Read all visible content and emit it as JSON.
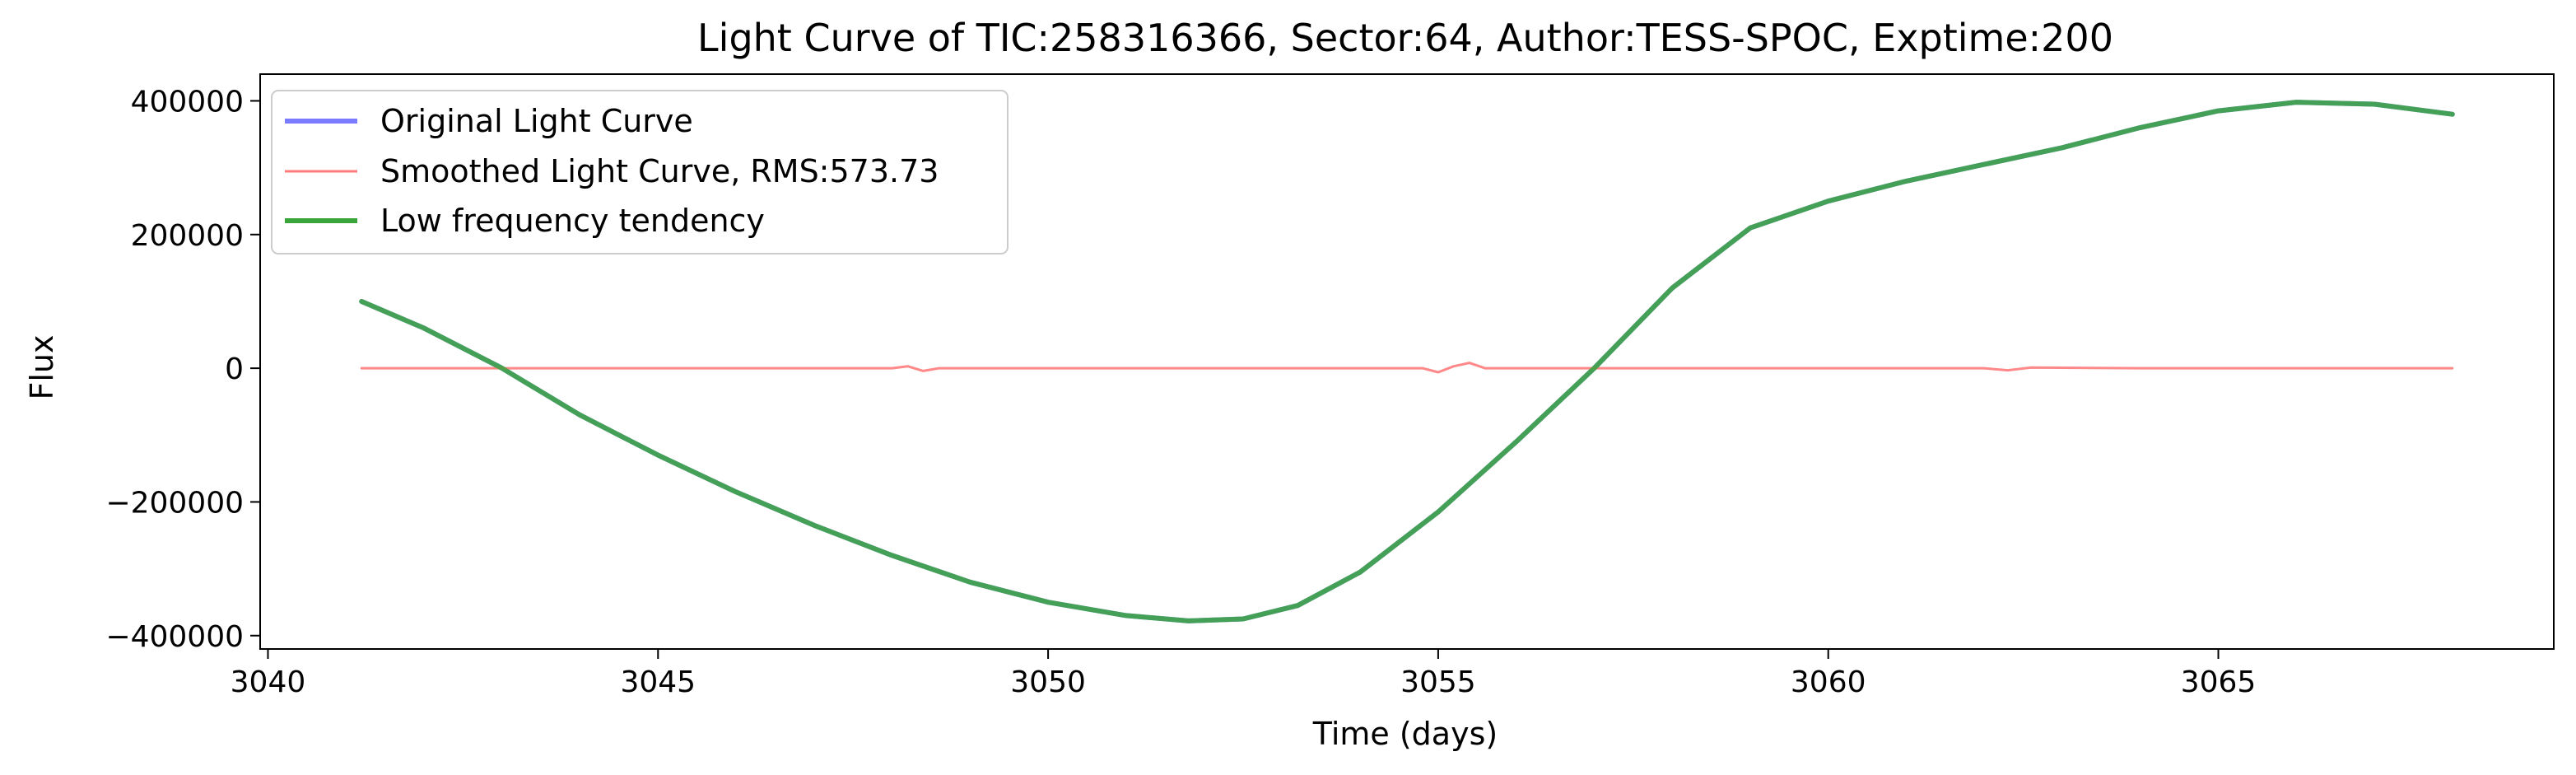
{
  "chart_data": {
    "type": "line",
    "title": "Light Curve of TIC:258316366, Sector:64, Author:TESS-SPOC, Exptime:200",
    "xlabel": "Time (days)",
    "ylabel": "Flux",
    "xlim": [
      3039.9,
      3069.3
    ],
    "ylim": [
      -420000,
      440000
    ],
    "x_ticks": [
      3040,
      3045,
      3050,
      3055,
      3060,
      3065
    ],
    "y_ticks": [
      400000,
      200000,
      0,
      -200000,
      -400000
    ],
    "x_tick_labels": [
      "3040",
      "3045",
      "3050",
      "3055",
      "3060",
      "3065"
    ],
    "y_tick_labels": [
      "400000",
      "200000",
      "0",
      "−200000",
      "−400000"
    ],
    "grid": false,
    "legend_position": "upper-left",
    "colors": {
      "original": "#7b7bff",
      "smoothed": "#ff7b7b",
      "low_frequency": "#3aa53a",
      "overlap": "#2a6e4e"
    },
    "series": [
      {
        "name": "Original Light Curve",
        "color": "#7b7bff",
        "x": [
          3041.2,
          3042.0,
          3043.0,
          3044.0,
          3045.0,
          3046.0,
          3047.0,
          3048.0,
          3049.0,
          3050.0,
          3051.0,
          3051.8,
          3052.5,
          3053.2,
          3054.0,
          3055.0,
          3056.0,
          3057.0,
          3058.0,
          3059.0,
          3060.0,
          3061.0,
          3062.0,
          3063.0,
          3064.0,
          3065.0,
          3066.0,
          3067.0,
          3068.0
        ],
        "values": [
          100000,
          60000,
          0,
          -70000,
          -130000,
          -185000,
          -235000,
          -280000,
          -320000,
          -350000,
          -370000,
          -378000,
          -375000,
          -355000,
          -305000,
          -215000,
          -110000,
          0,
          120000,
          210000,
          250000,
          280000,
          305000,
          330000,
          360000,
          385000,
          398000,
          395000,
          380000
        ]
      },
      {
        "name": "Smoothed Light Curve, RMS:573.73",
        "color": "#ff7b7b",
        "x": [
          3041.2,
          3043.0,
          3045.0,
          3047.0,
          3048.0,
          3048.2,
          3048.4,
          3048.6,
          3050.0,
          3052.0,
          3054.0,
          3054.8,
          3055.0,
          3055.2,
          3055.4,
          3055.6,
          3057.0,
          3059.0,
          3061.0,
          3062.0,
          3062.3,
          3062.6,
          3064.0,
          3066.0,
          3068.0
        ],
        "values": [
          0,
          0,
          0,
          0,
          0,
          3000,
          -4000,
          0,
          0,
          0,
          0,
          0,
          -6000,
          3000,
          8000,
          0,
          0,
          0,
          0,
          0,
          -3000,
          1000,
          0,
          0,
          0
        ]
      },
      {
        "name": "Low frequency tendency",
        "color": "#3aa53a",
        "x": [
          3041.2,
          3042.0,
          3043.0,
          3044.0,
          3045.0,
          3046.0,
          3047.0,
          3048.0,
          3049.0,
          3050.0,
          3051.0,
          3051.8,
          3052.5,
          3053.2,
          3054.0,
          3055.0,
          3056.0,
          3057.0,
          3058.0,
          3059.0,
          3060.0,
          3061.0,
          3062.0,
          3063.0,
          3064.0,
          3065.0,
          3066.0,
          3067.0,
          3068.0
        ],
        "values": [
          100000,
          60000,
          0,
          -70000,
          -130000,
          -185000,
          -235000,
          -280000,
          -320000,
          -350000,
          -370000,
          -378000,
          -375000,
          -355000,
          -305000,
          -215000,
          -110000,
          0,
          120000,
          210000,
          250000,
          280000,
          305000,
          330000,
          360000,
          385000,
          398000,
          395000,
          380000
        ]
      }
    ]
  }
}
